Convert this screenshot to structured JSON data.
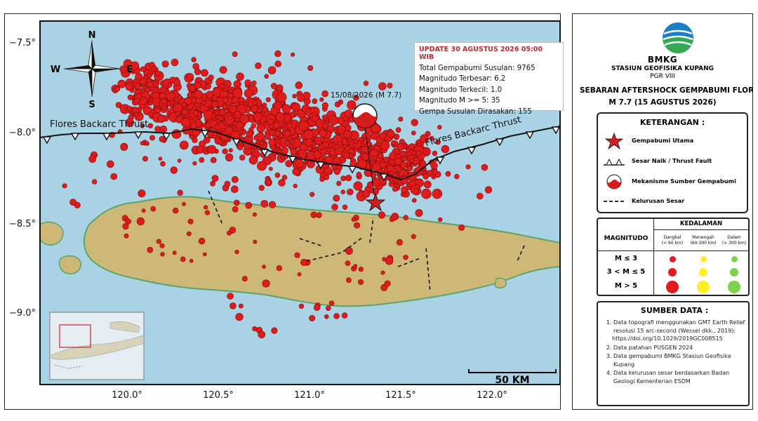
{
  "map": {
    "lat_ticks": [
      "−7.5°",
      "−8.0°",
      "−8.5°",
      "−9.0°"
    ],
    "lon_ticks": [
      "120.0°",
      "120.5°",
      "121.0°",
      "121.5°",
      "122.0°"
    ],
    "fault_labels": [
      "Flores Backarc Thrust",
      "Flores Backarc Thrust"
    ],
    "compass": {
      "n": "N",
      "s": "S",
      "e": "E",
      "w": "W"
    },
    "mainshock_label": "15/08/2026 (M 7.7)",
    "scale_label": "50 KM",
    "colors": {
      "sea": "#a9d3e4",
      "land": "#cdb878",
      "quake": "#e01b1b",
      "quake_stroke": "#7a0a0a",
      "fault": "#111111"
    }
  },
  "info": {
    "update": "UPDATE 30 AGUSTUS 2026 05:00 WIB",
    "lines": [
      "Total Gempabumi Susulan: 9765",
      "Magnitudo Terbesar: 6.2",
      "Magnitudo Terkecil: 1.0",
      "Magnitudo M >= 5: 35",
      "Gempa Susulan Dirasakan: 155"
    ]
  },
  "panel": {
    "org": "BMKG",
    "station": "STASIUN GEOFISIKA KUPANG",
    "region": "PGR VIII",
    "title": "SEBARAN AFTERSHOCK GEMPABUMI FLORES",
    "subtitle": "M 7.7 (15 AGUSTUS 2026)",
    "legend_title": "KETERANGAN :",
    "legend_items": [
      {
        "label": "Gempabumi Utama",
        "icon": "star-icon"
      },
      {
        "label": "Sesar Naik / Thrust Fault",
        "icon": "thrust-fault-icon"
      },
      {
        "label": "Mekanisme Sumber Gempabumi",
        "icon": "beachball-icon"
      },
      {
        "label": "Kelurusan Sesar",
        "icon": "dashed-line-icon"
      }
    ],
    "mag_table": {
      "depth_title": "KEDALAMAN",
      "mag_header": "MAGNITUDO",
      "depth_cols": [
        {
          "name": "Dangkal",
          "range": "(< 60 km)",
          "color": "#e31a1c"
        },
        {
          "name": "Menengah",
          "range": "(60-300 km)",
          "color": "#ffee22"
        },
        {
          "name": "Dalam",
          "range": "(> 300 km)",
          "color": "#7bd34a"
        }
      ],
      "rows": [
        "M ≤ 3",
        "3 < M ≤ 5",
        "M > 5"
      ]
    },
    "source_title": "SUMBER DATA :",
    "sources": [
      "Data topografi menggunakan GMT Earth Relief resolusi 15 arc-second (Wessel dkk., 2019);",
      "Data patahan PUSGEN 2024",
      "Data gempabumi BMKG Stasiun Geofisika Kupang",
      "Data kelurusan sesar berdasarkan Badan Geologi Kementerian ESDM"
    ],
    "source_link": "https://doi.org/10.1029/2019GC008515"
  }
}
